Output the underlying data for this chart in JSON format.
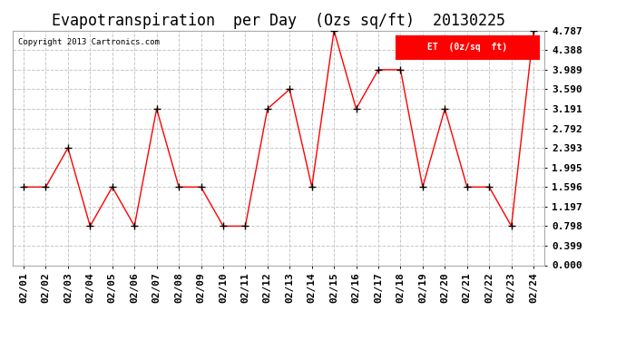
{
  "title": "Evapotranspiration  per Day  (Ozs sq/ft)  20130225",
  "copyright": "Copyright 2013 Cartronics.com",
  "legend_label": "ET  (0z/sq  ft)",
  "dates": [
    "02/01",
    "02/02",
    "02/03",
    "02/04",
    "02/05",
    "02/06",
    "02/07",
    "02/08",
    "02/09",
    "02/10",
    "02/11",
    "02/12",
    "02/13",
    "02/14",
    "02/15",
    "02/16",
    "02/17",
    "02/18",
    "02/19",
    "02/20",
    "02/21",
    "02/22",
    "02/23",
    "02/24"
  ],
  "values": [
    1.596,
    1.596,
    2.393,
    0.798,
    1.596,
    0.798,
    3.191,
    1.596,
    1.596,
    0.798,
    0.798,
    3.191,
    3.59,
    1.596,
    4.787,
    3.191,
    3.989,
    3.989,
    1.596,
    3.191,
    1.596,
    1.596,
    0.798,
    4.787
  ],
  "line_color": "red",
  "marker_color": "black",
  "background_color": "white",
  "grid_color": "#c8c8c8",
  "ylim": [
    0.0,
    4.787
  ],
  "yticks": [
    0.0,
    0.399,
    0.798,
    1.197,
    1.596,
    1.995,
    2.393,
    2.792,
    3.191,
    3.59,
    3.989,
    4.388,
    4.787
  ],
  "title_fontsize": 12,
  "tick_fontsize": 8,
  "xlabel_fontsize": 8,
  "legend_bg_color": "red",
  "legend_text_color": "white",
  "fig_width": 6.9,
  "fig_height": 3.75,
  "dpi": 100
}
